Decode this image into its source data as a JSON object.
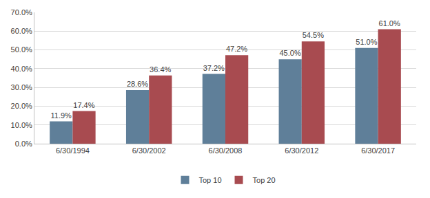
{
  "chart_data": {
    "type": "bar",
    "categories": [
      "6/30/1994",
      "6/30/2002",
      "6/30/2008",
      "6/30/2012",
      "6/30/2017"
    ],
    "series": [
      {
        "name": "Top 10",
        "color": "#5f7f99",
        "values": [
          11.9,
          28.6,
          37.2,
          45.0,
          51.0
        ],
        "value_labels": [
          "11.9%",
          "28.6%",
          "37.2%",
          "45.0%",
          "51.0%"
        ]
      },
      {
        "name": "Top 20",
        "color": "#a84b50",
        "values": [
          17.4,
          36.4,
          47.2,
          54.5,
          61.0
        ],
        "value_labels": [
          "17.4%",
          "36.4%",
          "47.2%",
          "54.5%",
          "61.0%"
        ]
      }
    ],
    "ylim": [
      0,
      70
    ],
    "yticks": [
      {
        "value": 0,
        "label": "0.0%"
      },
      {
        "value": 10,
        "label": "10.0%"
      },
      {
        "value": 20,
        "label": "20.0%"
      },
      {
        "value": 30,
        "label": "30.0%"
      },
      {
        "value": 40,
        "label": "40.0%"
      },
      {
        "value": 50,
        "label": "50.0%"
      },
      {
        "value": 60,
        "label": "60.0%"
      },
      {
        "value": 70,
        "label": "70.0%"
      }
    ],
    "grid": true,
    "legend": "bottom",
    "data_labels": true
  }
}
